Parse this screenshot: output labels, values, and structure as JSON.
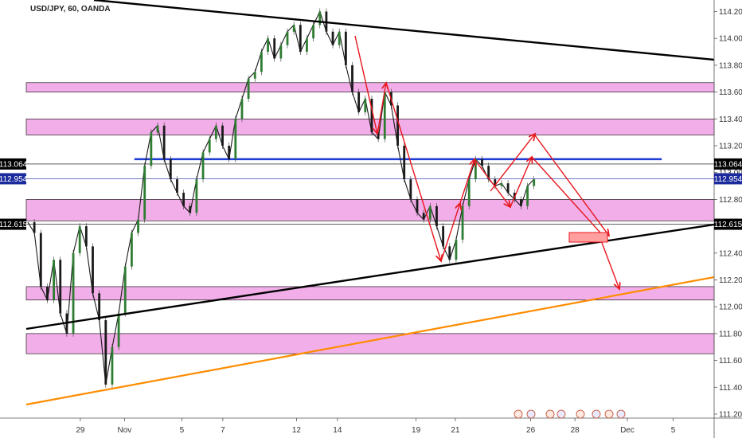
{
  "title": "USD/JPY, 60, OANDA",
  "chart_data": {
    "type": "candlestick",
    "symbol": "USD/JPY",
    "timeframe": "60",
    "source": "OANDA",
    "y_axis": {
      "range": [
        111.15,
        114.25
      ],
      "ticks": [
        "114.200",
        "114.000",
        "113.800",
        "113.600",
        "113.400",
        "113.200",
        "113.000",
        "112.800",
        "112.600",
        "112.400",
        "112.200",
        "112.000",
        "111.800",
        "111.600",
        "111.400",
        "111.200"
      ]
    },
    "x_axis": {
      "ticks": [
        "29",
        "Nov",
        "5",
        "7",
        "12",
        "14",
        "19",
        "21",
        "26",
        "28",
        "Dec",
        "5"
      ]
    },
    "price_badges": [
      {
        "label": "113.064",
        "value": 113.064,
        "color": "#000000"
      },
      {
        "label": "112.954",
        "value": 112.954,
        "color": "#1b2a9c"
      },
      {
        "label": "112.615",
        "value": 112.615,
        "color": "#000000"
      }
    ],
    "zones": [
      {
        "from": 113.6,
        "to": 113.67
      },
      {
        "from": 113.28,
        "to": 113.4
      },
      {
        "from": 112.64,
        "to": 112.8
      },
      {
        "from": 112.05,
        "to": 112.15
      },
      {
        "from": 111.65,
        "to": 111.8
      }
    ],
    "horizontal_lines": [
      {
        "value": 113.064,
        "color": "#000000"
      },
      {
        "value": 112.954,
        "color": "#1b2a9c"
      },
      {
        "value": 112.615,
        "color": "#000000"
      },
      {
        "value": 113.1,
        "color": "#1f3bd6",
        "segment": [
          "Nov-1",
          "Dec-2"
        ]
      }
    ],
    "trend_lines": [
      {
        "color": "#000000",
        "from": [
          "Oct-30 (~Oct 26 start)",
          114.3
        ],
        "to": [
          "Dec 7",
          113.83
        ]
      },
      {
        "color": "#000000",
        "from": [
          "Oct 27",
          111.83
        ],
        "to": [
          "Dec 7",
          112.62
        ]
      },
      {
        "color": "#ff8c00",
        "from": [
          "Oct 27",
          111.28
        ],
        "to": [
          "Dec 7",
          112.23
        ]
      }
    ],
    "series_path_prices": [
      112.63,
      112.55,
      112.15,
      112.05,
      112.35,
      111.95,
      111.8,
      112.4,
      112.6,
      112.45,
      112.1,
      111.9,
      111.42,
      111.7,
      111.95,
      112.3,
      112.55,
      112.65,
      113.05,
      113.3,
      113.35,
      113.1,
      112.95,
      112.85,
      112.75,
      112.7,
      112.95,
      113.15,
      113.25,
      113.35,
      113.2,
      113.1,
      113.4,
      113.55,
      113.7,
      113.75,
      113.9,
      114.0,
      113.85,
      113.95,
      114.05,
      114.1,
      113.9,
      114.0,
      114.1,
      114.2,
      114.05,
      113.95,
      114.05,
      113.8,
      113.6,
      113.45,
      113.55,
      113.3,
      113.25,
      113.6,
      113.5,
      113.2,
      112.95,
      112.8,
      112.7,
      112.65,
      112.75,
      112.6,
      112.45,
      112.35,
      112.5,
      112.75,
      112.95,
      113.1,
      113.05,
      112.95,
      112.9,
      112.92,
      112.85,
      112.8,
      112.75,
      112.9,
      112.95
    ],
    "annotation": {
      "box": {
        "from": 112.47,
        "to": 112.52,
        "color": "#ff9f9f"
      }
    }
  }
}
